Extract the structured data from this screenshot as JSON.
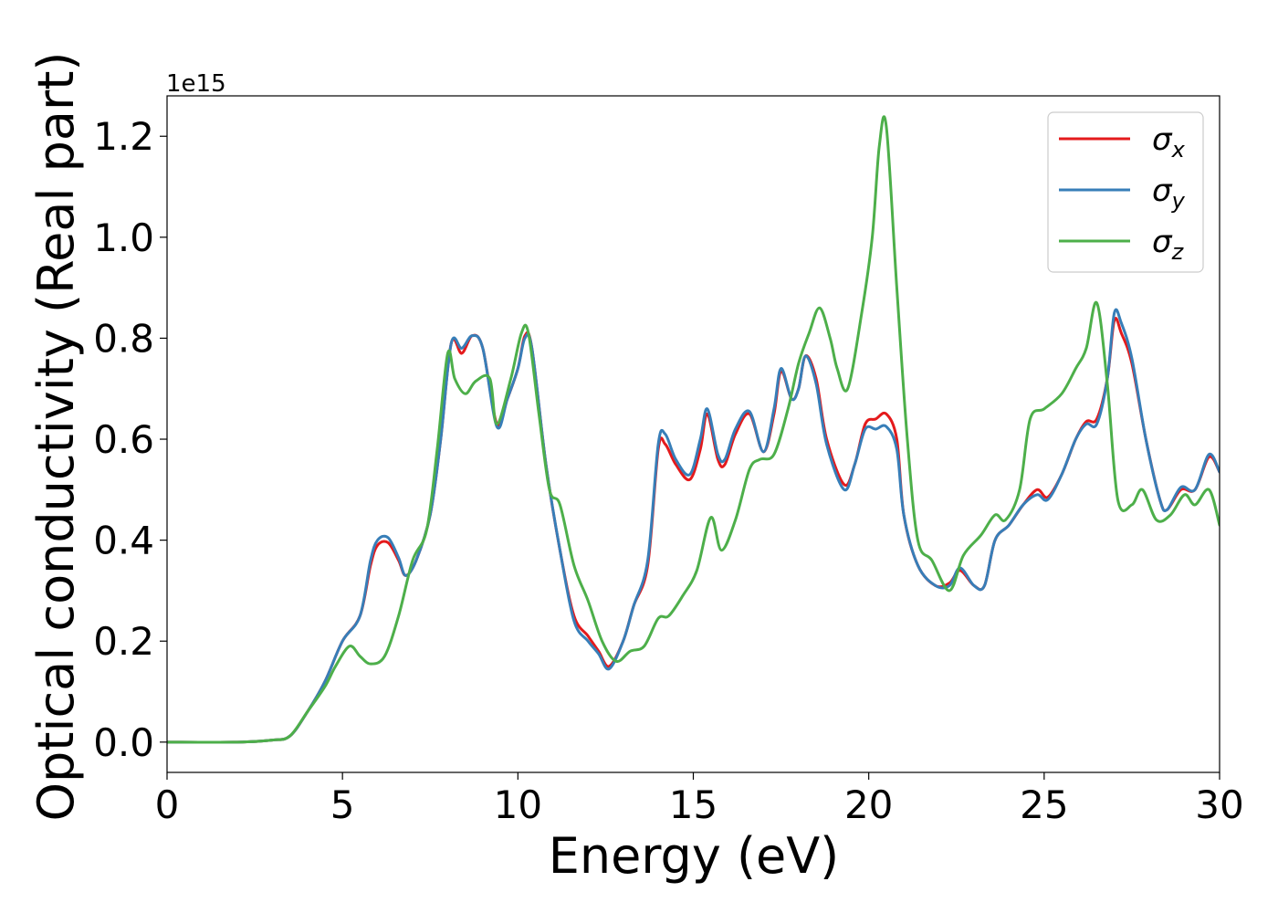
{
  "chart_data": {
    "type": "line",
    "title": "",
    "xlabel": "Energy (eV)",
    "ylabel": "Optical conductivity (Real part)",
    "y_offset_label": "1e15",
    "xlim": [
      0,
      30
    ],
    "ylim": [
      -0.06,
      1.28
    ],
    "x_ticks": [
      0,
      5,
      10,
      15,
      20,
      25,
      30
    ],
    "x_tick_labels": [
      "0",
      "5",
      "10",
      "15",
      "20",
      "25",
      "30"
    ],
    "y_ticks": [
      0.0,
      0.2,
      0.4,
      0.6,
      0.8,
      1.0,
      1.2
    ],
    "y_tick_labels": [
      "0.0",
      "0.2",
      "0.4",
      "0.6",
      "0.8",
      "1.0",
      "1.2"
    ],
    "y_scale_note": "values in units of 1e15",
    "grid": false,
    "legend_position": "top-right",
    "series": [
      {
        "name": "σx",
        "legend_base": "σ",
        "legend_sub": "x",
        "color": "#e41a1c",
        "points": [
          [
            0,
            0
          ],
          [
            2,
            0
          ],
          [
            3,
            0.004
          ],
          [
            3.5,
            0.012
          ],
          [
            4,
            0.06
          ],
          [
            4.5,
            0.12
          ],
          [
            5,
            0.2
          ],
          [
            5.5,
            0.25
          ],
          [
            5.8,
            0.35
          ],
          [
            6,
            0.39
          ],
          [
            6.3,
            0.395
          ],
          [
            6.6,
            0.36
          ],
          [
            6.8,
            0.33
          ],
          [
            7.1,
            0.36
          ],
          [
            7.5,
            0.45
          ],
          [
            7.8,
            0.6
          ],
          [
            8.1,
            0.79
          ],
          [
            8.4,
            0.77
          ],
          [
            8.7,
            0.805
          ],
          [
            9.0,
            0.78
          ],
          [
            9.4,
            0.63
          ],
          [
            9.7,
            0.68
          ],
          [
            10.0,
            0.74
          ],
          [
            10.2,
            0.805
          ],
          [
            10.4,
            0.78
          ],
          [
            10.8,
            0.55
          ],
          [
            11.2,
            0.38
          ],
          [
            11.6,
            0.25
          ],
          [
            12.0,
            0.21
          ],
          [
            12.3,
            0.18
          ],
          [
            12.6,
            0.15
          ],
          [
            13.0,
            0.2
          ],
          [
            13.3,
            0.27
          ],
          [
            13.7,
            0.35
          ],
          [
            14.0,
            0.58
          ],
          [
            14.2,
            0.59
          ],
          [
            14.5,
            0.55
          ],
          [
            14.9,
            0.52
          ],
          [
            15.2,
            0.58
          ],
          [
            15.4,
            0.65
          ],
          [
            15.7,
            0.56
          ],
          [
            15.9,
            0.55
          ],
          [
            16.2,
            0.61
          ],
          [
            16.6,
            0.65
          ],
          [
            17.0,
            0.575
          ],
          [
            17.3,
            0.65
          ],
          [
            17.5,
            0.735
          ],
          [
            17.8,
            0.68
          ],
          [
            18.0,
            0.7
          ],
          [
            18.2,
            0.765
          ],
          [
            18.5,
            0.72
          ],
          [
            18.8,
            0.6
          ],
          [
            19.3,
            0.51
          ],
          [
            19.6,
            0.55
          ],
          [
            19.9,
            0.63
          ],
          [
            20.2,
            0.64
          ],
          [
            20.5,
            0.65
          ],
          [
            20.8,
            0.6
          ],
          [
            21.0,
            0.45
          ],
          [
            21.4,
            0.35
          ],
          [
            21.9,
            0.31
          ],
          [
            22.3,
            0.315
          ],
          [
            22.6,
            0.34
          ],
          [
            23.0,
            0.31
          ],
          [
            23.3,
            0.31
          ],
          [
            23.6,
            0.4
          ],
          [
            24.0,
            0.43
          ],
          [
            24.4,
            0.47
          ],
          [
            24.8,
            0.5
          ],
          [
            25.1,
            0.485
          ],
          [
            25.5,
            0.53
          ],
          [
            25.9,
            0.6
          ],
          [
            26.2,
            0.635
          ],
          [
            26.5,
            0.64
          ],
          [
            26.8,
            0.72
          ],
          [
            27.0,
            0.835
          ],
          [
            27.2,
            0.81
          ],
          [
            27.5,
            0.75
          ],
          [
            27.9,
            0.6
          ],
          [
            28.3,
            0.48
          ],
          [
            28.5,
            0.46
          ],
          [
            28.9,
            0.5
          ],
          [
            29.3,
            0.5
          ],
          [
            29.7,
            0.565
          ],
          [
            30,
            0.535
          ]
        ]
      },
      {
        "name": "σy",
        "legend_base": "σ",
        "legend_sub": "y",
        "color": "#377eb8",
        "points": [
          [
            0,
            0
          ],
          [
            2,
            0
          ],
          [
            3,
            0.004
          ],
          [
            3.5,
            0.012
          ],
          [
            4,
            0.06
          ],
          [
            4.5,
            0.12
          ],
          [
            5,
            0.2
          ],
          [
            5.5,
            0.25
          ],
          [
            5.8,
            0.36
          ],
          [
            6,
            0.4
          ],
          [
            6.3,
            0.405
          ],
          [
            6.6,
            0.365
          ],
          [
            6.8,
            0.33
          ],
          [
            7.1,
            0.36
          ],
          [
            7.5,
            0.45
          ],
          [
            7.8,
            0.6
          ],
          [
            8.1,
            0.79
          ],
          [
            8.4,
            0.78
          ],
          [
            8.7,
            0.805
          ],
          [
            9.0,
            0.78
          ],
          [
            9.4,
            0.625
          ],
          [
            9.7,
            0.68
          ],
          [
            10.0,
            0.74
          ],
          [
            10.2,
            0.8
          ],
          [
            10.4,
            0.78
          ],
          [
            10.8,
            0.55
          ],
          [
            11.2,
            0.38
          ],
          [
            11.6,
            0.24
          ],
          [
            12.0,
            0.2
          ],
          [
            12.3,
            0.175
          ],
          [
            12.6,
            0.145
          ],
          [
            13.0,
            0.2
          ],
          [
            13.3,
            0.27
          ],
          [
            13.7,
            0.36
          ],
          [
            14.0,
            0.59
          ],
          [
            14.2,
            0.61
          ],
          [
            14.5,
            0.56
          ],
          [
            14.9,
            0.53
          ],
          [
            15.2,
            0.6
          ],
          [
            15.4,
            0.66
          ],
          [
            15.7,
            0.57
          ],
          [
            15.9,
            0.56
          ],
          [
            16.2,
            0.62
          ],
          [
            16.6,
            0.655
          ],
          [
            17.0,
            0.575
          ],
          [
            17.3,
            0.66
          ],
          [
            17.5,
            0.74
          ],
          [
            17.8,
            0.68
          ],
          [
            18.0,
            0.7
          ],
          [
            18.2,
            0.765
          ],
          [
            18.5,
            0.71
          ],
          [
            18.8,
            0.59
          ],
          [
            19.3,
            0.5
          ],
          [
            19.6,
            0.55
          ],
          [
            19.9,
            0.62
          ],
          [
            20.2,
            0.62
          ],
          [
            20.5,
            0.625
          ],
          [
            20.8,
            0.58
          ],
          [
            21.0,
            0.45
          ],
          [
            21.4,
            0.35
          ],
          [
            21.9,
            0.31
          ],
          [
            22.3,
            0.31
          ],
          [
            22.6,
            0.345
          ],
          [
            23.0,
            0.31
          ],
          [
            23.3,
            0.31
          ],
          [
            23.6,
            0.4
          ],
          [
            24.0,
            0.43
          ],
          [
            24.4,
            0.47
          ],
          [
            24.8,
            0.49
          ],
          [
            25.1,
            0.48
          ],
          [
            25.5,
            0.53
          ],
          [
            25.9,
            0.6
          ],
          [
            26.2,
            0.63
          ],
          [
            26.5,
            0.63
          ],
          [
            26.8,
            0.72
          ],
          [
            27.0,
            0.85
          ],
          [
            27.2,
            0.83
          ],
          [
            27.5,
            0.76
          ],
          [
            27.9,
            0.6
          ],
          [
            28.3,
            0.48
          ],
          [
            28.5,
            0.46
          ],
          [
            28.9,
            0.505
          ],
          [
            29.3,
            0.5
          ],
          [
            29.7,
            0.57
          ],
          [
            30,
            0.535
          ]
        ]
      },
      {
        "name": "σz",
        "legend_base": "σ",
        "legend_sub": "z",
        "color": "#4daf4a",
        "points": [
          [
            0,
            0
          ],
          [
            2,
            0
          ],
          [
            3,
            0.004
          ],
          [
            3.5,
            0.012
          ],
          [
            4,
            0.06
          ],
          [
            4.5,
            0.11
          ],
          [
            4.8,
            0.15
          ],
          [
            5.2,
            0.19
          ],
          [
            5.5,
            0.17
          ],
          [
            5.8,
            0.155
          ],
          [
            6.2,
            0.17
          ],
          [
            6.6,
            0.25
          ],
          [
            7.0,
            0.36
          ],
          [
            7.4,
            0.42
          ],
          [
            7.7,
            0.58
          ],
          [
            8.0,
            0.77
          ],
          [
            8.2,
            0.72
          ],
          [
            8.5,
            0.69
          ],
          [
            8.8,
            0.715
          ],
          [
            9.2,
            0.72
          ],
          [
            9.4,
            0.63
          ],
          [
            9.8,
            0.72
          ],
          [
            10.1,
            0.81
          ],
          [
            10.3,
            0.81
          ],
          [
            10.6,
            0.65
          ],
          [
            10.9,
            0.5
          ],
          [
            11.2,
            0.47
          ],
          [
            11.6,
            0.35
          ],
          [
            12.0,
            0.28
          ],
          [
            12.4,
            0.2
          ],
          [
            12.8,
            0.16
          ],
          [
            13.2,
            0.18
          ],
          [
            13.6,
            0.19
          ],
          [
            14.0,
            0.245
          ],
          [
            14.3,
            0.25
          ],
          [
            14.7,
            0.29
          ],
          [
            15.1,
            0.34
          ],
          [
            15.5,
            0.445
          ],
          [
            15.8,
            0.38
          ],
          [
            16.2,
            0.44
          ],
          [
            16.6,
            0.54
          ],
          [
            16.9,
            0.56
          ],
          [
            17.3,
            0.57
          ],
          [
            17.7,
            0.66
          ],
          [
            18.0,
            0.75
          ],
          [
            18.3,
            0.81
          ],
          [
            18.6,
            0.86
          ],
          [
            18.9,
            0.8
          ],
          [
            19.1,
            0.74
          ],
          [
            19.4,
            0.7
          ],
          [
            19.8,
            0.85
          ],
          [
            20.1,
            1.0
          ],
          [
            20.3,
            1.18
          ],
          [
            20.5,
            1.22
          ],
          [
            20.8,
            0.9
          ],
          [
            21.1,
            0.6
          ],
          [
            21.4,
            0.4
          ],
          [
            21.8,
            0.36
          ],
          [
            22.3,
            0.3
          ],
          [
            22.7,
            0.37
          ],
          [
            23.2,
            0.41
          ],
          [
            23.6,
            0.45
          ],
          [
            23.9,
            0.44
          ],
          [
            24.3,
            0.5
          ],
          [
            24.6,
            0.64
          ],
          [
            25.0,
            0.66
          ],
          [
            25.5,
            0.69
          ],
          [
            25.9,
            0.74
          ],
          [
            26.2,
            0.78
          ],
          [
            26.5,
            0.87
          ],
          [
            26.8,
            0.71
          ],
          [
            27.1,
            0.48
          ],
          [
            27.5,
            0.47
          ],
          [
            27.8,
            0.5
          ],
          [
            28.2,
            0.44
          ],
          [
            28.6,
            0.45
          ],
          [
            29.0,
            0.49
          ],
          [
            29.3,
            0.47
          ],
          [
            29.7,
            0.5
          ],
          [
            30,
            0.43
          ]
        ]
      }
    ]
  }
}
